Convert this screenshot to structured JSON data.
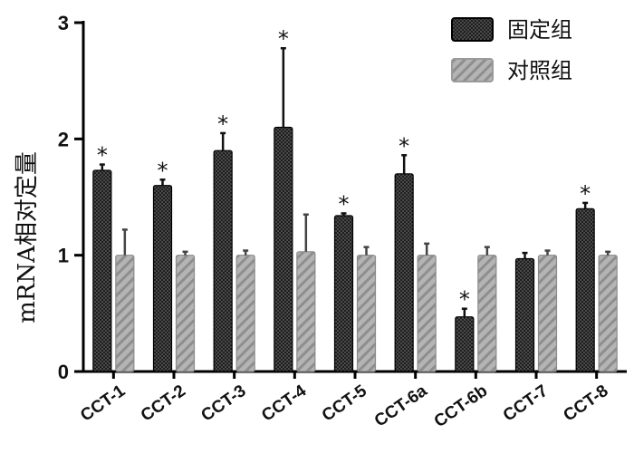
{
  "chart_data": {
    "type": "bar",
    "ylabel": "mRNA相对定量",
    "xlabel": "",
    "ylim": [
      0,
      3
    ],
    "yticks": [
      0,
      1,
      2,
      3
    ],
    "legend_position": "top-right",
    "categories": [
      "CCT-1",
      "CCT-2",
      "CCT-3",
      "CCT-4",
      "CCT-5",
      "CCT-6a",
      "CCT-6b",
      "CCT-7",
      "CCT-8"
    ],
    "series": [
      {
        "name": "固定组",
        "color": "#2a2a2a",
        "values": [
          1.73,
          1.6,
          1.9,
          2.1,
          1.34,
          1.7,
          0.47,
          0.97,
          1.4
        ],
        "errors": [
          0.05,
          0.05,
          0.15,
          0.68,
          0.02,
          0.16,
          0.07,
          0.05,
          0.05
        ]
      },
      {
        "name": "对照组",
        "color": "#a8a8a8",
        "values": [
          1.0,
          1.0,
          1.0,
          1.03,
          1.0,
          1.0,
          1.0,
          1.0,
          1.0
        ],
        "errors": [
          0.22,
          0.03,
          0.04,
          0.32,
          0.07,
          0.1,
          0.07,
          0.04,
          0.03
        ]
      }
    ],
    "significance": [
      true,
      true,
      true,
      true,
      true,
      true,
      true,
      false,
      true
    ],
    "significance_marker": "*"
  }
}
